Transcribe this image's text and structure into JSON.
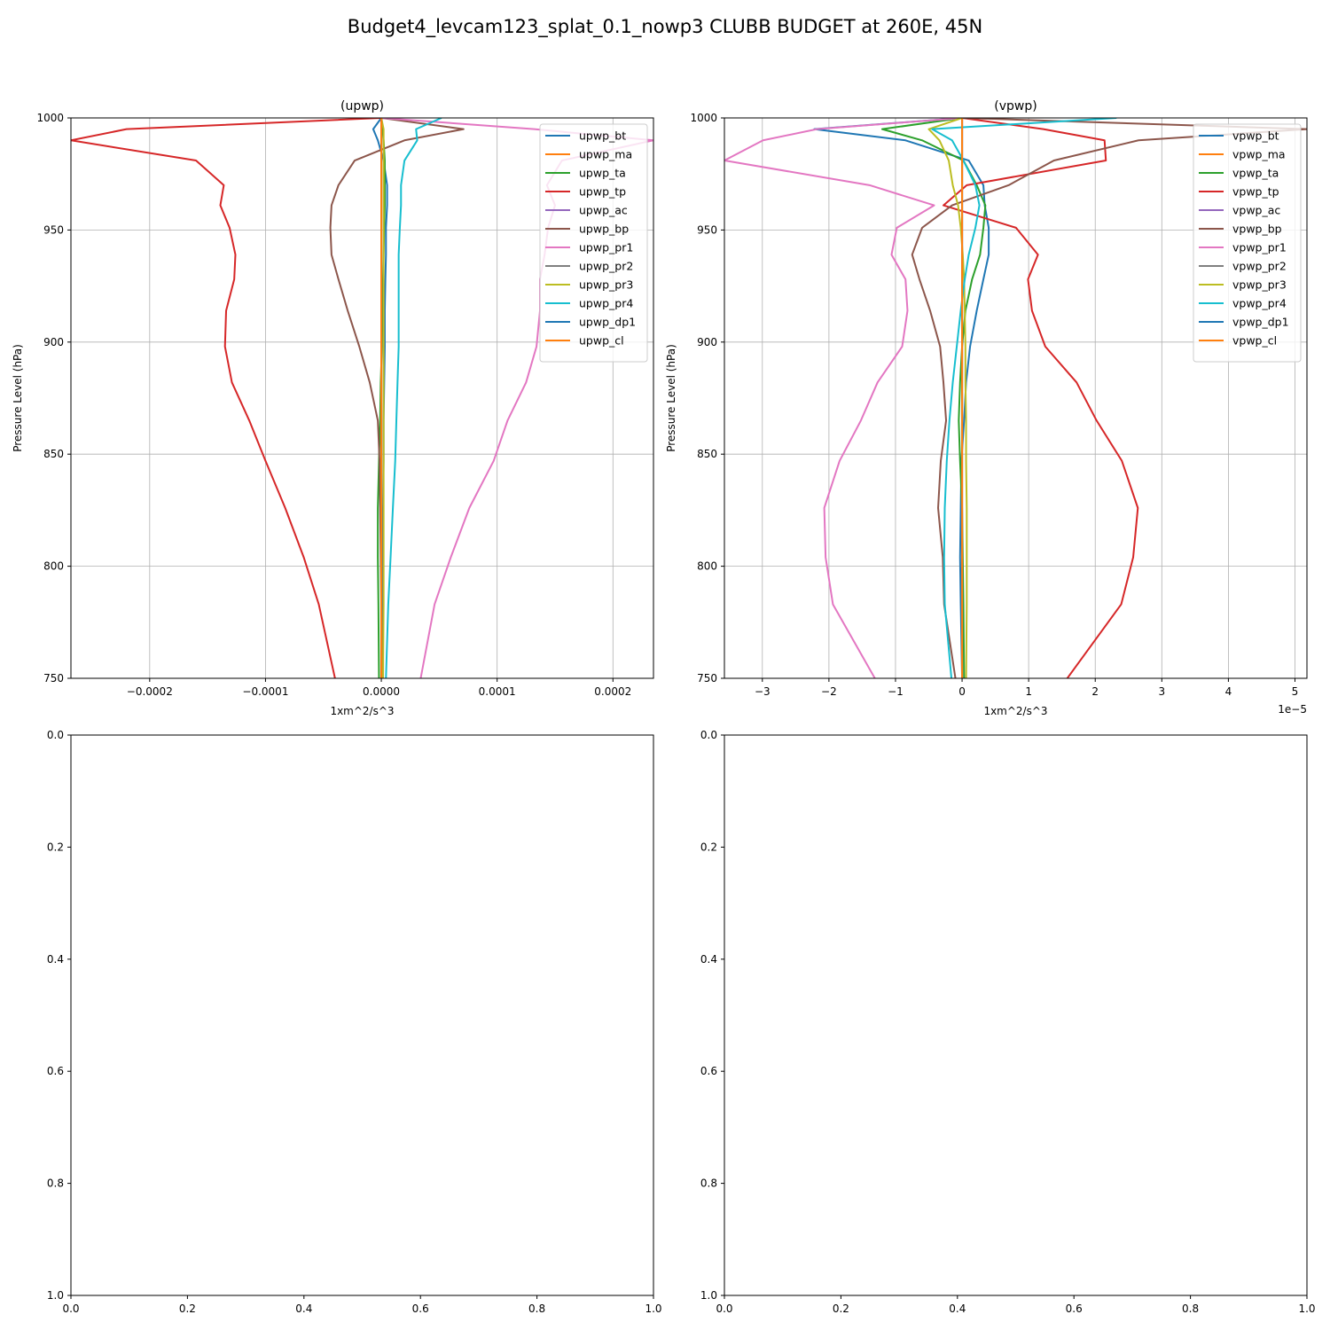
{
  "figure": {
    "title": "Budget4_levcam123_splat_0.1_nowp3 CLUBB BUDGET at 260E, 45N"
  },
  "colors": [
    "#1f77b4",
    "#ff7f0e",
    "#2ca02c",
    "#d62728",
    "#9467bd",
    "#8c564b",
    "#e377c2",
    "#7f7f7f",
    "#bcbd22",
    "#17becf",
    "#1f77b4",
    "#ff7f0e"
  ],
  "chart_data": [
    {
      "type": "line",
      "title": "(upwp)",
      "xlabel": "1xm^2/s^3",
      "ylabel": "Pressure Level (hPa)",
      "xlim": [
        -0.000268,
        0.000235
      ],
      "ylim": [
        1000,
        750
      ],
      "xticks": [
        -0.0002,
        -0.0001,
        0.0,
        0.0001,
        0.0002
      ],
      "xtick_labels": [
        "−0.0002",
        "−0.0001",
        "0.0000",
        "0.0001",
        "0.0002"
      ],
      "yticks": [
        750,
        800,
        850,
        900,
        950,
        1000
      ],
      "ytick_labels": [
        "750",
        "800",
        "850",
        "900",
        "950",
        "1000"
      ],
      "x_offset_label": "",
      "grid": true,
      "legend_position": "top-right",
      "levels": [
        750,
        783,
        804,
        826,
        847,
        865,
        882,
        898,
        914,
        928,
        939,
        951,
        961,
        970,
        981,
        990,
        995,
        1000
      ],
      "series": [
        {
          "name": "upwp_bt",
          "values": [
            8e-07,
            1e-06,
            1.2e-06,
            1.5e-06,
            2e-06,
            2e-06,
            2.5e-06,
            3e-06,
            3e-06,
            3.5e-06,
            4e-06,
            4e-06,
            5e-06,
            5e-06,
            2e-06,
            -3e-06,
            -7e-06,
            0.0
          ]
        },
        {
          "name": "upwp_ma",
          "values": [
            0,
            0,
            0,
            0,
            0,
            0,
            0,
            0,
            0,
            0,
            0,
            0,
            0,
            0,
            0,
            0,
            0,
            0
          ]
        },
        {
          "name": "upwp_ta",
          "values": [
            -2e-06,
            -2.5e-06,
            -3e-06,
            -3e-06,
            -2e-06,
            -1e-06,
            -5e-07,
            5e-07,
            1e-06,
            1.5e-06,
            2e-06,
            2.5e-06,
            3e-06,
            3e-06,
            3e-06,
            2e-06,
            1e-06,
            0.0
          ]
        },
        {
          "name": "upwp_tp",
          "values": [
            -4e-05,
            -5.4e-05,
            -6.7e-05,
            -8.3e-05,
            -0.0001,
            -0.000114,
            -0.000129,
            -0.000135,
            -0.000134,
            -0.000127,
            -0.000126,
            -0.000131,
            -0.000139,
            -0.000136,
            -0.00016,
            -0.000268,
            -0.00022,
            0.0
          ]
        },
        {
          "name": "upwp_ac",
          "values": [
            0,
            0,
            0,
            0,
            0,
            0,
            0,
            0,
            0,
            0,
            0,
            0,
            0,
            0,
            0,
            0,
            0,
            0
          ]
        },
        {
          "name": "upwp_bp",
          "values": [
            5e-07,
            0.0,
            -5e-07,
            -1e-06,
            -1.5e-06,
            -3e-06,
            -1e-05,
            -1.9e-05,
            -2.9e-05,
            -3.7e-05,
            -4.3e-05,
            -4.4e-05,
            -4.3e-05,
            -3.7e-05,
            -2.3e-05,
            2e-05,
            7.1e-05,
            0.0
          ]
        },
        {
          "name": "upwp_pr1",
          "values": [
            3.4e-05,
            4.6e-05,
            6e-05,
            7.6e-05,
            9.7e-05,
            0.000109,
            0.000125,
            0.000134,
            0.000137,
            0.000137,
            0.000141,
            0.000144,
            0.00015,
            0.000143,
            0.000156,
            0.000235,
            0.000132,
            0.0
          ]
        },
        {
          "name": "upwp_pr2",
          "values": [
            0,
            0,
            0,
            0,
            0,
            0,
            0,
            0,
            0,
            0,
            0,
            0,
            0,
            0,
            0,
            0,
            0,
            0
          ]
        },
        {
          "name": "upwp_pr3",
          "values": [
            1.5e-06,
            2e-06,
            2e-06,
            2e-06,
            2e-06,
            2e-06,
            2e-06,
            2e-06,
            2e-06,
            2e-06,
            2e-06,
            2e-06,
            2e-06,
            2e-06,
            2e-06,
            2e-06,
            2e-06,
            0.0
          ]
        },
        {
          "name": "upwp_pr4",
          "values": [
            4e-06,
            6e-06,
            8e-06,
            1e-05,
            1.2e-05,
            1.3e-05,
            1.4e-05,
            1.5e-05,
            1.5e-05,
            1.5e-05,
            1.5e-05,
            1.6e-05,
            1.7e-05,
            1.7e-05,
            2e-05,
            3.1e-05,
            3e-05,
            5.2e-05
          ]
        },
        {
          "name": "upwp_dp1",
          "values": [
            0,
            0,
            0,
            0,
            0,
            0,
            0,
            0,
            0,
            0,
            0,
            0,
            0,
            0,
            0,
            0,
            0,
            0
          ]
        },
        {
          "name": "upwp_cl",
          "values": [
            0,
            0,
            0,
            0,
            0,
            0,
            0,
            0,
            0,
            0,
            0,
            0,
            0,
            0,
            0,
            0,
            0,
            0
          ]
        }
      ]
    },
    {
      "type": "line",
      "title": "(vpwp)",
      "xlabel": "1xm^2/s^3",
      "ylabel": "Pressure Level (hPa)",
      "xlim": [
        -3.57e-05,
        5.18e-05
      ],
      "ylim": [
        1000,
        750
      ],
      "xticks": [
        -3e-05,
        -2e-05,
        -1e-05,
        0.0,
        1e-05,
        2e-05,
        3e-05,
        4e-05,
        5e-05
      ],
      "xtick_labels": [
        "−3",
        "−2",
        "−1",
        "0",
        "1",
        "2",
        "3",
        "4",
        "5"
      ],
      "yticks": [
        750,
        800,
        850,
        900,
        950,
        1000
      ],
      "ytick_labels": [
        "750",
        "800",
        "850",
        "900",
        "950",
        "1000"
      ],
      "x_offset_label": "1e−5",
      "grid": true,
      "legend_position": "top-right",
      "levels": [
        750,
        783,
        804,
        826,
        847,
        865,
        882,
        898,
        914,
        928,
        939,
        951,
        961,
        970,
        981,
        990,
        995,
        1000
      ],
      "series": [
        {
          "name": "vpwp_bt",
          "values": [
            0.0,
            -2e-07,
            -3e-07,
            -2e-07,
            -1e-07,
            3e-07,
            6e-07,
            1.2e-06,
            2.2e-06,
            3.2e-06,
            4e-06,
            4e-06,
            3.4e-06,
            3.2e-06,
            1e-06,
            -8.5e-06,
            -2.22e-05,
            0.0
          ]
        },
        {
          "name": "vpwp_ma",
          "values": [
            0,
            0,
            0,
            0,
            0,
            0,
            0,
            0,
            0,
            0,
            0,
            0,
            0,
            0,
            0,
            0,
            0,
            0
          ]
        },
        {
          "name": "vpwp_ta",
          "values": [
            3e-07,
            2e-07,
            1e-07,
            0.0,
            -3e-07,
            -5e-07,
            -3e-07,
            0.0,
            5e-07,
            1.5e-06,
            2.7e-06,
            3.2e-06,
            3.5e-06,
            2.2e-06,
            2e-07,
            -6e-06,
            -1.2e-05,
            0.0
          ]
        },
        {
          "name": "vpwp_tp",
          "values": [
            1.58e-05,
            2.39e-05,
            2.57e-05,
            2.64e-05,
            2.4e-05,
            2.02e-05,
            1.72e-05,
            1.25e-05,
            1.05e-05,
            9.9e-06,
            1.14e-05,
            8.1e-06,
            -2.8e-06,
            7e-07,
            2.16e-05,
            2.14e-05,
            1.22e-05,
            0.0
          ]
        },
        {
          "name": "vpwp_ac",
          "values": [
            0,
            0,
            0,
            0,
            0,
            0,
            0,
            0,
            0,
            0,
            0,
            0,
            0,
            0,
            0,
            0,
            0,
            0
          ]
        },
        {
          "name": "vpwp_bp",
          "values": [
            -1e-06,
            -2.7e-06,
            -2.9e-06,
            -3.6e-06,
            -3.2e-06,
            -2.4e-06,
            -2.8e-06,
            -3.3e-06,
            -4.8e-06,
            -6.4e-06,
            -7.5e-06,
            -6e-06,
            -1.5e-06,
            7e-06,
            1.38e-05,
            2.65e-05,
            5.18e-05,
            0.0
          ]
        },
        {
          "name": "vpwp_pr1",
          "values": [
            -1.31e-05,
            -1.94e-05,
            -2.05e-05,
            -2.07e-05,
            -1.84e-05,
            -1.52e-05,
            -1.27e-05,
            -9e-06,
            -8.2e-06,
            -8.5e-06,
            -1.06e-05,
            -9.8e-06,
            -4.2e-06,
            -1.39e-05,
            -3.57e-05,
            -2.99e-05,
            -2.18e-05,
            0.0
          ]
        },
        {
          "name": "vpwp_pr2",
          "values": [
            0,
            0,
            0,
            0,
            0,
            0,
            0,
            0,
            0,
            0,
            0,
            0,
            0,
            0,
            0,
            0,
            0,
            0
          ]
        },
        {
          "name": "vpwp_pr3",
          "values": [
            6e-07,
            7e-07,
            7e-07,
            7e-07,
            6e-07,
            6e-07,
            5e-07,
            5e-07,
            4e-07,
            3e-07,
            1e-07,
            -2e-07,
            -6e-07,
            -1.4e-06,
            -2e-06,
            -3.4e-06,
            -5e-06,
            0.0
          ]
        },
        {
          "name": "vpwp_pr4",
          "values": [
            -1.6e-06,
            -2.6e-06,
            -2.7e-06,
            -2.6e-06,
            -2.3e-06,
            -1.9e-06,
            -1.4e-06,
            -8e-07,
            -2e-07,
            4e-07,
            1e-06,
            2e-06,
            2.6e-06,
            2e-06,
            2e-07,
            -1.5e-06,
            -4.5e-06,
            2.32e-05
          ]
        },
        {
          "name": "vpwp_dp1",
          "values": [
            0,
            0,
            0,
            0,
            0,
            0,
            0,
            0,
            0,
            0,
            0,
            0,
            0,
            0,
            0,
            0,
            0,
            0
          ]
        },
        {
          "name": "vpwp_cl",
          "values": [
            0,
            0,
            0,
            0,
            0,
            0,
            0,
            0,
            0,
            0,
            0,
            0,
            0,
            0,
            0,
            0,
            0,
            0
          ]
        }
      ]
    },
    {
      "type": "line",
      "title": "",
      "xlim": [
        0,
        1
      ],
      "ylim": [
        0,
        1
      ],
      "xticks": [
        0,
        0.2,
        0.4,
        0.6,
        0.8,
        1.0
      ],
      "xtick_labels": [
        "0.0",
        "0.2",
        "0.4",
        "0.6",
        "0.8",
        "1.0"
      ],
      "yticks": [
        0,
        0.2,
        0.4,
        0.6,
        0.8,
        1.0
      ],
      "ytick_labels": [
        "0.0",
        "0.2",
        "0.4",
        "0.6",
        "0.8",
        "1.0"
      ],
      "grid": false,
      "series": []
    },
    {
      "type": "line",
      "title": "",
      "xlim": [
        0,
        1
      ],
      "ylim": [
        0,
        1
      ],
      "xticks": [
        0,
        0.2,
        0.4,
        0.6,
        0.8,
        1.0
      ],
      "xtick_labels": [
        "0.0",
        "0.2",
        "0.4",
        "0.6",
        "0.8",
        "1.0"
      ],
      "yticks": [
        0,
        0.2,
        0.4,
        0.6,
        0.8,
        1.0
      ],
      "ytick_labels": [
        "0.0",
        "0.2",
        "0.4",
        "0.6",
        "0.8",
        "1.0"
      ],
      "grid": false,
      "series": []
    }
  ]
}
